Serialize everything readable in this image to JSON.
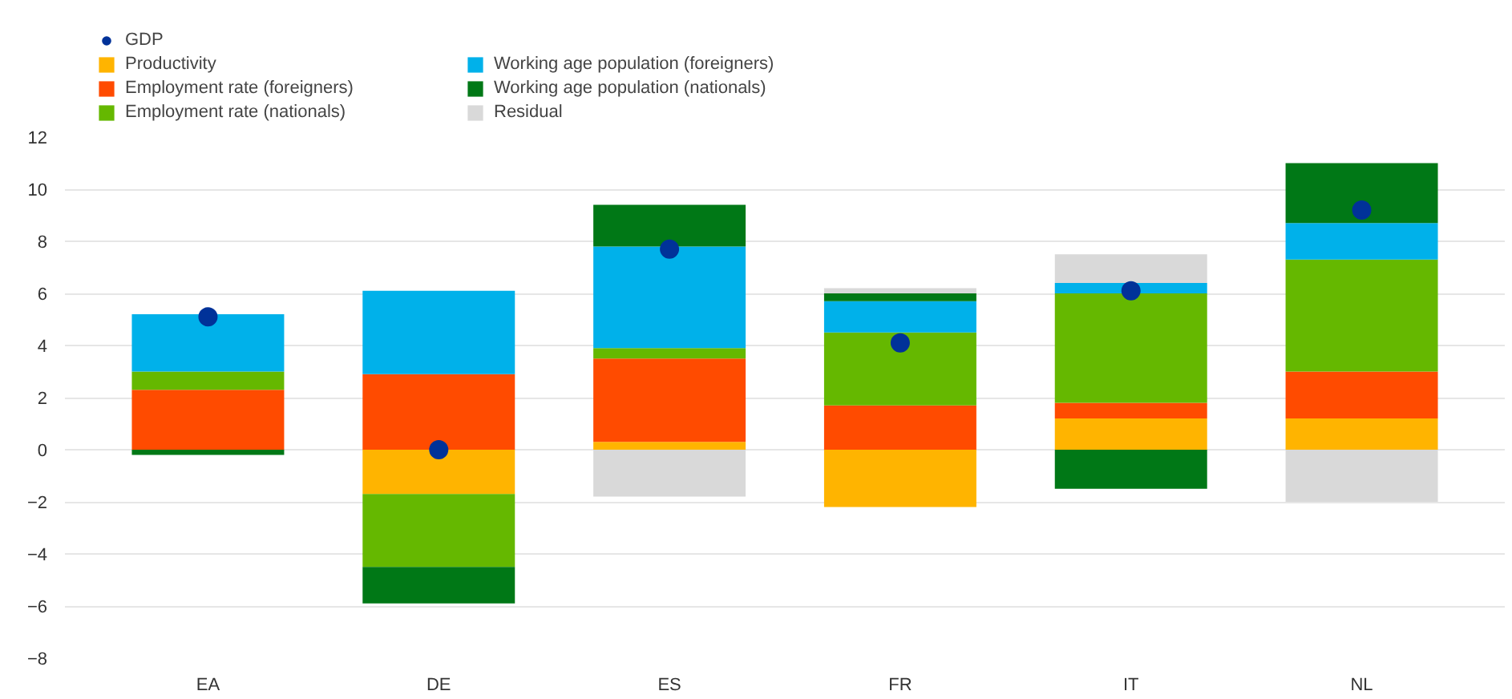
{
  "chart_data": {
    "type": "bar",
    "stacked": true,
    "categories": [
      "EA",
      "DE",
      "ES",
      "FR",
      "IT",
      "NL"
    ],
    "series": [
      {
        "name": "GDP",
        "type": "scatter",
        "color": "#003299",
        "values": [
          5.1,
          0.0,
          7.7,
          4.1,
          6.1,
          9.2
        ]
      },
      {
        "name": "Productivity",
        "color": "#ffb400",
        "values": [
          0,
          -1.7,
          0.3,
          -2.2,
          1.2,
          1.2
        ]
      },
      {
        "name": "Employment rate (foreigners)",
        "color": "#ff4b00",
        "values": [
          2.3,
          2.9,
          3.2,
          1.7,
          0.6,
          1.8
        ]
      },
      {
        "name": "Employment rate (nationals)",
        "color": "#65b800",
        "values": [
          0.7,
          -2.8,
          0.4,
          2.8,
          4.2,
          4.3
        ]
      },
      {
        "name": "Working age population (foreigners)",
        "color": "#00b1ea",
        "values": [
          2.2,
          3.2,
          3.9,
          1.2,
          0.4,
          1.4
        ]
      },
      {
        "name": "Working age population (nationals)",
        "color": "#007816",
        "values": [
          -0.2,
          -1.4,
          1.6,
          0.3,
          -1.5,
          2.3
        ]
      },
      {
        "name": "Residual",
        "color": "#d9d9d9",
        "values": [
          0,
          0,
          -1.8,
          0.2,
          1.1,
          -2.0
        ]
      }
    ],
    "ylim": [
      -8,
      12
    ],
    "yticks": [
      -8,
      -6,
      -4,
      -2,
      0,
      2,
      4,
      6,
      8,
      10,
      12
    ],
    "grid": "y",
    "legend": "top left",
    "marker": "circle"
  }
}
